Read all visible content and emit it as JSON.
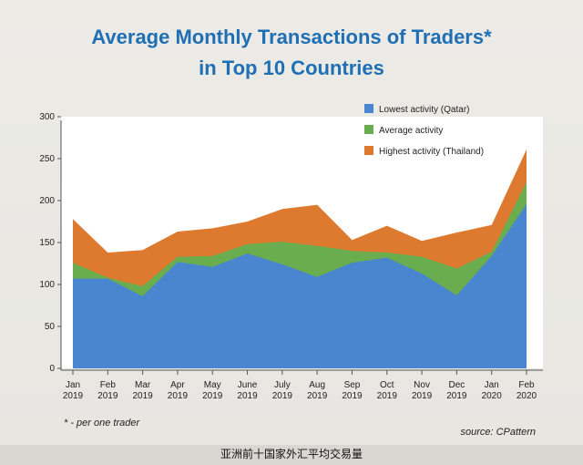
{
  "title_line1": "Average Monthly Transactions of Traders*",
  "title_line2": "in Top 10 Countries",
  "footnote": "* - per one trader",
  "source": "source: CPattern",
  "caption": "亚洲前十国家外汇平均交易量",
  "colors": {
    "title": "#1f6fb5",
    "lowest": "#4a86cf",
    "average": "#6aad4f",
    "highest": "#dd7a2f"
  },
  "chart_data": {
    "type": "area",
    "categories": [
      [
        "Jan",
        "2019"
      ],
      [
        "Feb",
        "2019"
      ],
      [
        "Mar",
        "2019"
      ],
      [
        "Apr",
        "2019"
      ],
      [
        "May",
        "2019"
      ],
      [
        "June",
        "2019"
      ],
      [
        "July",
        "2019"
      ],
      [
        "Aug",
        "2019"
      ],
      [
        "Sep",
        "2019"
      ],
      [
        "Oct",
        "2019"
      ],
      [
        "Nov",
        "2019"
      ],
      [
        "Dec",
        "2019"
      ],
      [
        "Jan",
        "2020"
      ],
      [
        "Feb",
        "2020"
      ]
    ],
    "ylim": [
      0,
      300
    ],
    "yticks": [
      0,
      50,
      100,
      150,
      200,
      250,
      300
    ],
    "legend_position": "top-right",
    "series": [
      {
        "name": "Lowest activity (Qatar)",
        "values": [
          107,
          107,
          86,
          127,
          121,
          137,
          124,
          109,
          126,
          132,
          113,
          87,
          134,
          196
        ]
      },
      {
        "name": "Average activity",
        "values": [
          126,
          108,
          98,
          133,
          134,
          148,
          151,
          146,
          140,
          138,
          133,
          119,
          139,
          222
        ]
      },
      {
        "name": "Highest activity (Thailand)",
        "values": [
          178,
          138,
          141,
          163,
          167,
          175,
          190,
          195,
          153,
          170,
          152,
          162,
          171,
          261
        ]
      }
    ]
  }
}
